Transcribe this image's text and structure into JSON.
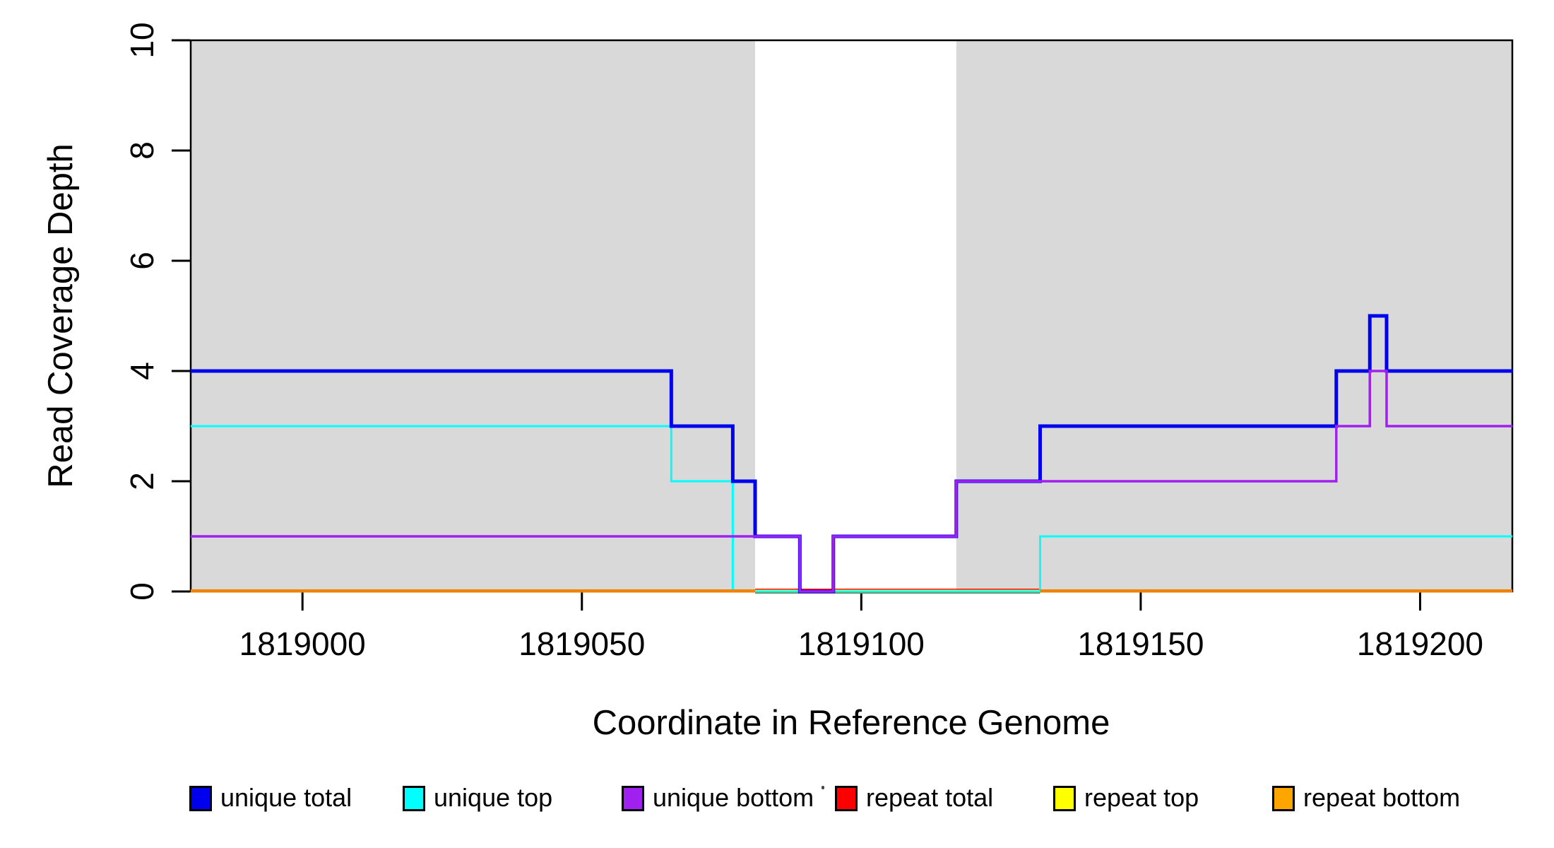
{
  "figure": {
    "background": "#ffffff",
    "plot_background_band_color": "#d9d9d9",
    "box_color": "#000000"
  },
  "chart_data": {
    "type": "line",
    "subtype": "step-coverage",
    "title": "",
    "xlabel": "Coordinate in Reference Genome",
    "ylabel": "Read Coverage Depth",
    "xlim": [
      1818980,
      1819216.5
    ],
    "ylim": [
      0,
      10
    ],
    "x_ticks": [
      1819000,
      1819050,
      1819100,
      1819150,
      1819200
    ],
    "y_ticks": [
      0,
      2,
      4,
      6,
      8,
      10
    ],
    "grid": false,
    "legend_position": "bottom",
    "background_bands": [
      {
        "name": "shaded-region-left",
        "x0": 1818980,
        "x1": 1819081,
        "color": "#d9d9d9"
      },
      {
        "name": "shaded-region-right",
        "x0": 1819117,
        "x1": 1819216.5,
        "color": "#d9d9d9"
      }
    ],
    "zero_gap": {
      "x0": 1819081,
      "x1": 1819132,
      "note": "white unshaded interval where the orange zero line is absent and a thin red/yellow/olive stack is visible at depth 0"
    },
    "gap_marker": {
      "name": "gap zero line",
      "color": "#6e7a47",
      "y": 0,
      "x0": 1819081,
      "x1": 1819132
    },
    "series": [
      {
        "name": "unique total",
        "color": "#0000ee",
        "width": 5,
        "steps": [
          [
            1818980,
            4
          ],
          [
            1819066,
            3
          ],
          [
            1819077,
            2
          ],
          [
            1819081,
            1
          ],
          [
            1819089,
            0
          ],
          [
            1819095,
            1
          ],
          [
            1819117,
            2
          ],
          [
            1819132,
            3
          ],
          [
            1819185,
            4
          ],
          [
            1819191,
            5
          ],
          [
            1819194,
            4
          ],
          [
            1819216.5,
            4
          ]
        ]
      },
      {
        "name": "unique top",
        "color": "#00ffff",
        "width": 3,
        "steps": [
          [
            1818980,
            3
          ],
          [
            1819066,
            2
          ],
          [
            1819077,
            0
          ],
          [
            1819132,
            1
          ],
          [
            1819216.5,
            1
          ]
        ]
      },
      {
        "name": "unique bottom",
        "color": "#a020f0",
        "width": 3.5,
        "steps": [
          [
            1818980,
            1
          ],
          [
            1819089,
            0
          ],
          [
            1819095,
            1
          ],
          [
            1819117,
            2
          ],
          [
            1819185,
            3
          ],
          [
            1819191,
            4
          ],
          [
            1819194,
            3
          ],
          [
            1819216.5,
            3
          ]
        ]
      },
      {
        "name": "repeat total",
        "color": "#ff0000",
        "width": 1.5,
        "steps": [
          [
            1818980,
            0
          ],
          [
            1819216.5,
            0
          ]
        ]
      },
      {
        "name": "repeat top",
        "color": "#ffff00",
        "width": 2,
        "steps": [
          [
            1818980,
            0
          ],
          [
            1819216.5,
            0
          ]
        ]
      },
      {
        "name": "repeat bottom",
        "color": "#ef8200",
        "legend_color": "#ffa500",
        "width": 4.5,
        "steps": [
          [
            1818980,
            0
          ],
          [
            1819216.5,
            0
          ]
        ]
      }
    ],
    "draw_order": [
      "repeat total",
      "repeat top",
      "unique top",
      "unique total",
      "unique bottom",
      "repeat bottom"
    ]
  }
}
